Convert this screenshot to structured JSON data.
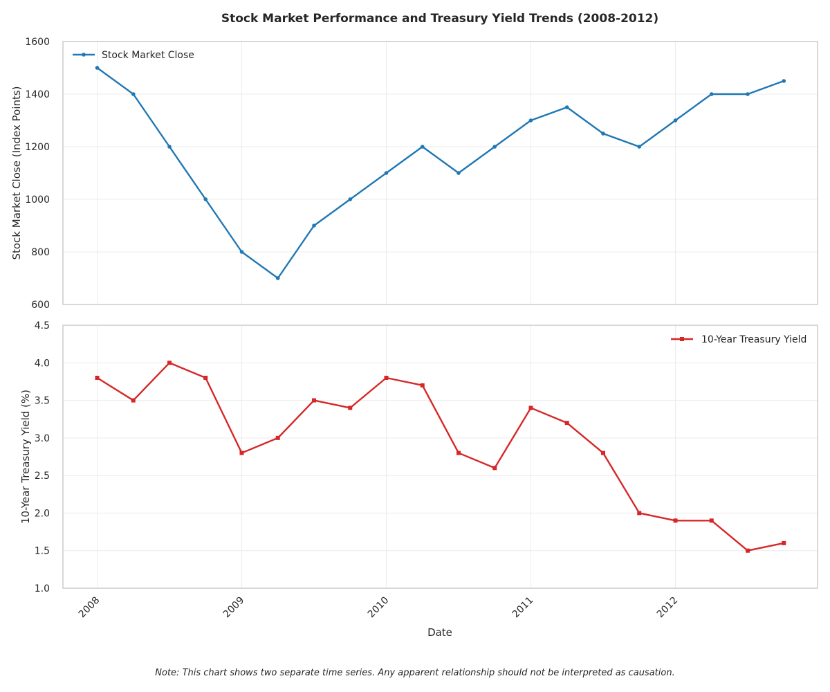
{
  "chart_data": {
    "title": "Stock Market Performance and Treasury Yield Trends (2008-2012)",
    "xlabel": "Date",
    "x_tick_labels": [
      "2008",
      "2009",
      "2010",
      "2011",
      "2012"
    ],
    "x": [
      "2008-01",
      "2008-04",
      "2008-07",
      "2008-10",
      "2009-01",
      "2009-04",
      "2009-07",
      "2009-10",
      "2010-01",
      "2010-04",
      "2010-07",
      "2010-10",
      "2011-01",
      "2011-04",
      "2011-07",
      "2011-10",
      "2012-01",
      "2012-04",
      "2012-07",
      "2012-10"
    ],
    "note": "Note: This chart shows two separate time series. Any apparent relationship should not be interpreted as causation.",
    "panels": [
      {
        "type": "line",
        "ylabel": "Stock Market Close (Index Points)",
        "ylim": [
          600,
          1600
        ],
        "yticks": [
          "600",
          "800",
          "1000",
          "1200",
          "1400",
          "1600"
        ],
        "legend_position": "upper-left",
        "grid": true,
        "series": [
          {
            "name": "Stock Market Close",
            "color": "#1f77b4",
            "marker": "circle",
            "values": [
              1500,
              1400,
              1200,
              1000,
              800,
              700,
              900,
              1000,
              1100,
              1200,
              1100,
              1200,
              1300,
              1350,
              1250,
              1200,
              1300,
              1400,
              1400,
              1450
            ]
          }
        ]
      },
      {
        "type": "line",
        "ylabel": "10-Year Treasury Yield (%)",
        "ylim": [
          1.0,
          4.5
        ],
        "yticks": [
          "1.0",
          "1.5",
          "2.0",
          "2.5",
          "3.0",
          "3.5",
          "4.0",
          "4.5"
        ],
        "legend_position": "upper-right",
        "grid": true,
        "series": [
          {
            "name": "10-Year Treasury Yield",
            "color": "#d62728",
            "marker": "square",
            "values": [
              3.8,
              3.5,
              4.0,
              3.8,
              2.8,
              3.0,
              3.5,
              3.4,
              3.8,
              3.7,
              2.8,
              2.6,
              3.4,
              3.2,
              2.8,
              2.0,
              1.9,
              1.9,
              1.5,
              1.6
            ]
          }
        ]
      }
    ]
  }
}
